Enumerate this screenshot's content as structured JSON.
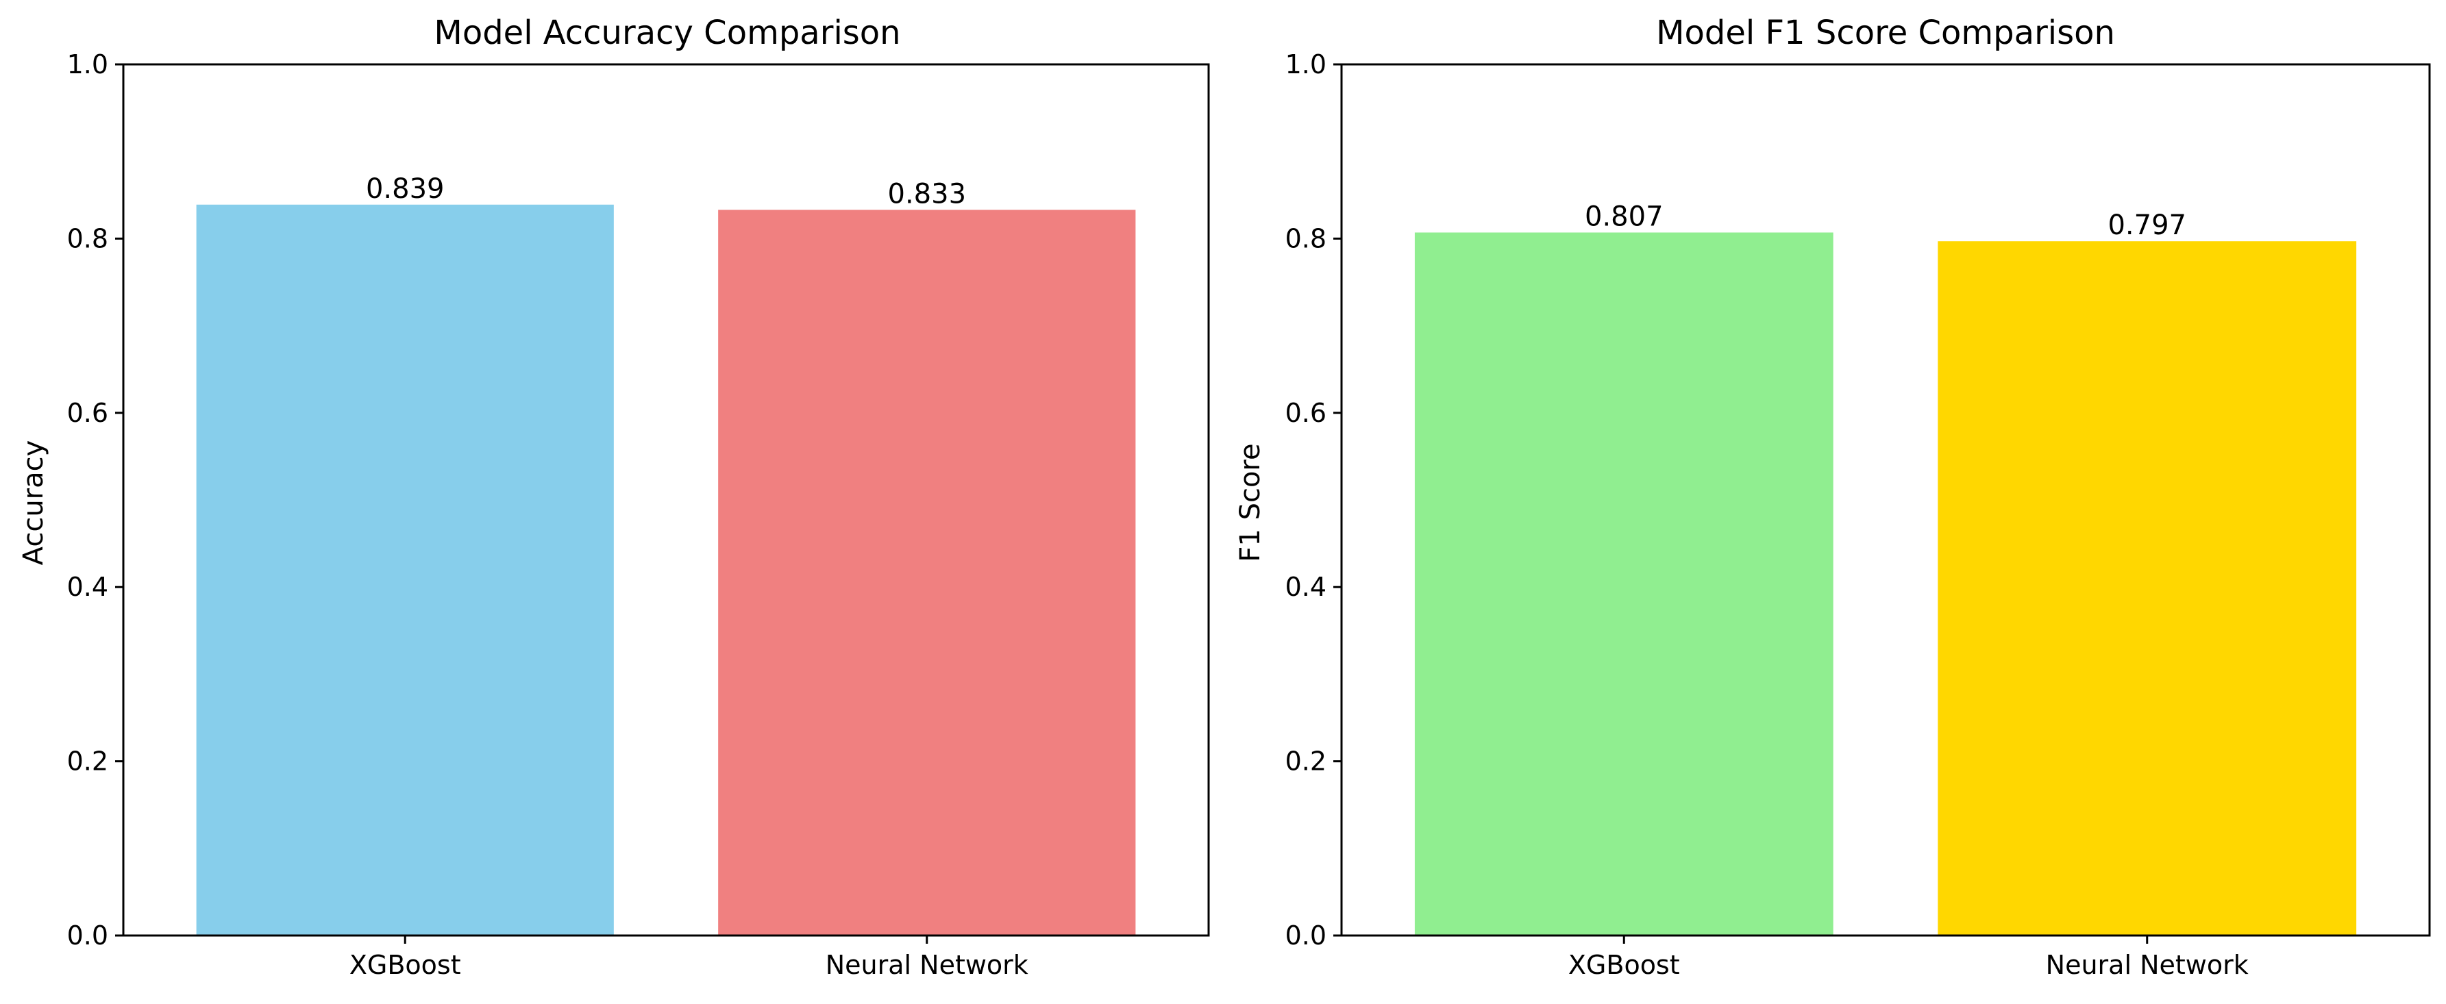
{
  "chart_data": [
    {
      "type": "bar",
      "title": "Model Accuracy Comparison",
      "xlabel": "",
      "ylabel": "Accuracy",
      "categories": [
        "XGBoost",
        "Neural Network"
      ],
      "values": [
        0.839,
        0.833
      ],
      "value_labels": [
        "0.839",
        "0.833"
      ],
      "colors": [
        "#87CEEB",
        "#F08080"
      ],
      "ylim": [
        0,
        1.0
      ],
      "yticks": [
        "0.0",
        "0.2",
        "0.4",
        "0.6",
        "0.8",
        "1.0"
      ],
      "grid": false
    },
    {
      "type": "bar",
      "title": "Model F1 Score Comparison",
      "xlabel": "",
      "ylabel": "F1 Score",
      "categories": [
        "XGBoost",
        "Neural Network"
      ],
      "values": [
        0.807,
        0.797
      ],
      "value_labels": [
        "0.807",
        "0.797"
      ],
      "colors": [
        "#90EE90",
        "#FFD700"
      ],
      "ylim": [
        0,
        1.0
      ],
      "yticks": [
        "0.0",
        "0.2",
        "0.4",
        "0.6",
        "0.8",
        "1.0"
      ],
      "grid": false
    }
  ]
}
